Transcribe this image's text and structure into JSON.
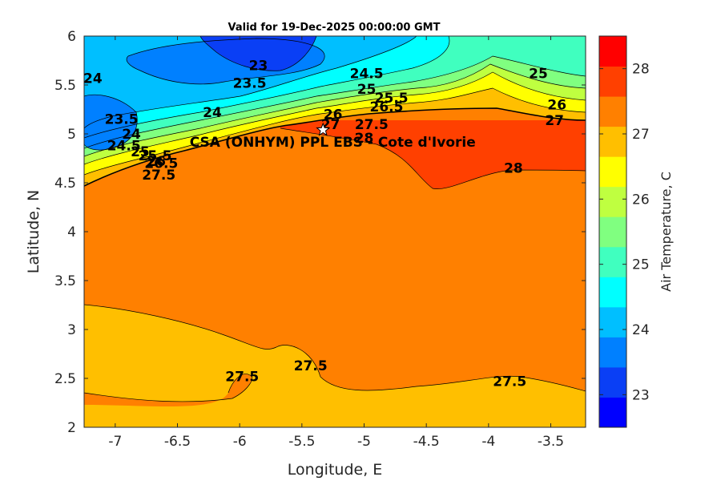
{
  "chart_data": {
    "type": "heatmap",
    "subtype": "filled-contour",
    "title": "Valid for 19-Dec-2025 00:00:00 GMT",
    "xlabel": "Longitude, E",
    "ylabel": "Latitude, N",
    "xlim": [
      -7.25,
      -3.22
    ],
    "ylim": [
      2,
      6
    ],
    "xticks": [
      -7,
      -6.5,
      -6,
      -5.5,
      -5,
      -4.5,
      -4,
      -3.5
    ],
    "xtick_labels": [
      "-7",
      "-6.5",
      "-6",
      "-5.5",
      "-5",
      "-4.5",
      "-4",
      "-3.5"
    ],
    "yticks": [
      2,
      2.5,
      3,
      3.5,
      4,
      4.5,
      5,
      5.5,
      6
    ],
    "ytick_labels": [
      "2",
      "2.5",
      "3",
      "3.5",
      "4",
      "4.5",
      "5",
      "5.5",
      "6"
    ],
    "colorbar": {
      "label": "Air Temperature, C",
      "range": [
        22.5,
        28.5
      ],
      "ticks": [
        23,
        24,
        25,
        26,
        27,
        28
      ],
      "tick_labels": [
        "23",
        "24",
        "25",
        "26",
        "27",
        "28"
      ],
      "colors": [
        "#0000ff",
        "#0a3ff5",
        "#0080ff",
        "#00bfff",
        "#00ffff",
        "#40ffbf",
        "#80ff80",
        "#bfff40",
        "#ffff00",
        "#ffbf00",
        "#ff8000",
        "#ff4000",
        "#ff0000"
      ]
    },
    "site": {
      "label": "CSA (ONHYM) PPL EBS - Cote d'Ivorie",
      "lon": -5.33,
      "lat": 5.04
    },
    "contour_labels": [
      {
        "text": "23",
        "lon": -5.85,
        "lat": 5.7
      },
      {
        "text": "23.5",
        "lon": -5.92,
        "lat": 5.52
      },
      {
        "text": "24",
        "lon": -7.18,
        "lat": 5.57
      },
      {
        "text": "24",
        "lon": -6.22,
        "lat": 5.22
      },
      {
        "text": "24.5",
        "lon": -4.98,
        "lat": 5.62
      },
      {
        "text": "25",
        "lon": -4.98,
        "lat": 5.46
      },
      {
        "text": "25",
        "lon": -3.6,
        "lat": 5.62
      },
      {
        "text": "25.5",
        "lon": -4.78,
        "lat": 5.37
      },
      {
        "text": "26",
        "lon": -5.25,
        "lat": 5.2
      },
      {
        "text": "26.5",
        "lon": -4.82,
        "lat": 5.28
      },
      {
        "text": "26",
        "lon": -3.45,
        "lat": 5.3
      },
      {
        "text": "27",
        "lon": -5.27,
        "lat": 5.1
      },
      {
        "text": "27.5",
        "lon": -4.94,
        "lat": 5.1
      },
      {
        "text": "27",
        "lon": -3.47,
        "lat": 5.14
      },
      {
        "text": "28",
        "lon": -5.0,
        "lat": 4.96
      },
      {
        "text": "28",
        "lon": -3.8,
        "lat": 4.65
      },
      {
        "text": "23.5",
        "lon": -6.95,
        "lat": 5.15
      },
      {
        "text": "24",
        "lon": -6.87,
        "lat": 5.0
      },
      {
        "text": "24.5",
        "lon": -6.93,
        "lat": 4.88
      },
      {
        "text": "25",
        "lon": -6.8,
        "lat": 4.82
      },
      {
        "text": "25.5",
        "lon": -6.68,
        "lat": 4.78
      },
      {
        "text": "26",
        "lon": -6.67,
        "lat": 4.72
      },
      {
        "text": "26.5",
        "lon": -6.63,
        "lat": 4.7
      },
      {
        "text": "27.5",
        "lon": -6.65,
        "lat": 4.58
      },
      {
        "text": "27.5",
        "lon": -5.98,
        "lat": 2.52
      },
      {
        "text": "27.5",
        "lon": -5.43,
        "lat": 2.63
      },
      {
        "text": "27.5",
        "lon": -3.83,
        "lat": 2.47
      }
    ]
  }
}
